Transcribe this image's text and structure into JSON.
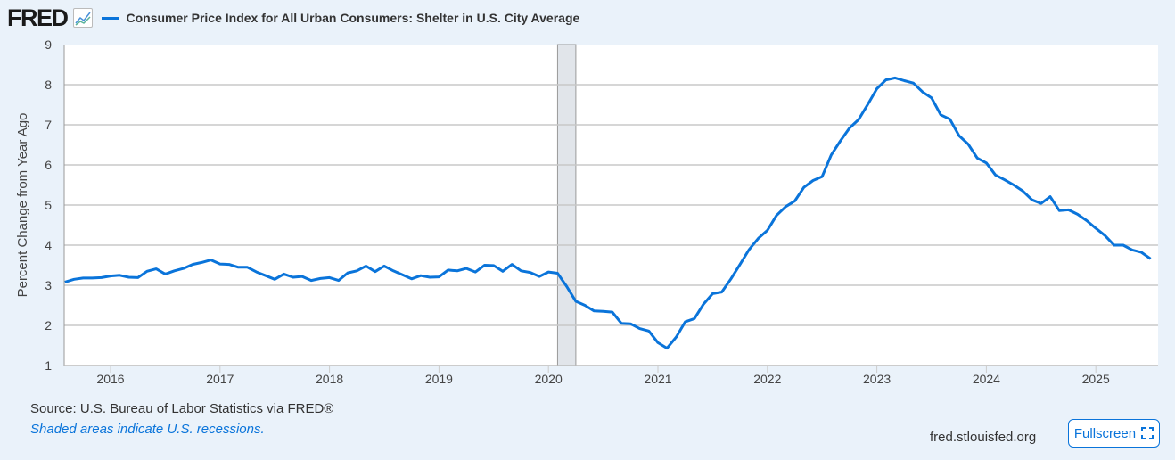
{
  "header": {
    "logo": "FRED",
    "legend_label": "Consumer Price Index for All Urban Consumers: Shelter in U.S. City Average"
  },
  "footer": {
    "source": "Source: U.S. Bureau of Labor Statistics via FRED®",
    "recession_note": "Shaded areas indicate U.S. recessions.",
    "url": "fred.stlouisfed.org",
    "fullscreen_label": "Fullscreen"
  },
  "colors": {
    "series": "#0a74da",
    "recession": "#e1e5ea",
    "grid": "#c8c8c8"
  },
  "chart_data": {
    "type": "line",
    "title": "Consumer Price Index for All Urban Consumers: Shelter in U.S. City Average",
    "ylabel": "Percent Change from Year Ago",
    "xlabel": "",
    "ylim": [
      1,
      9
    ],
    "yticks": [
      "1",
      "2",
      "3",
      "4",
      "5",
      "6",
      "7",
      "8",
      "9"
    ],
    "xticks": [
      "2016",
      "2017",
      "2018",
      "2019",
      "2020",
      "2021",
      "2022",
      "2023",
      "2024",
      "2025"
    ],
    "start": "2015-08",
    "frequency": "monthly",
    "recession": {
      "start": "2020-02",
      "end": "2020-04"
    },
    "grid": true,
    "series": [
      {
        "name": "Shelter CPI % change from year ago",
        "values": [
          3.08,
          3.15,
          3.18,
          3.18,
          3.19,
          3.23,
          3.25,
          3.2,
          3.19,
          3.35,
          3.41,
          3.28,
          3.36,
          3.42,
          3.52,
          3.57,
          3.63,
          3.53,
          3.52,
          3.45,
          3.45,
          3.33,
          3.24,
          3.15,
          3.28,
          3.2,
          3.22,
          3.12,
          3.17,
          3.19,
          3.12,
          3.31,
          3.36,
          3.48,
          3.34,
          3.48,
          3.36,
          3.26,
          3.16,
          3.24,
          3.2,
          3.21,
          3.38,
          3.36,
          3.42,
          3.33,
          3.5,
          3.49,
          3.35,
          3.52,
          3.36,
          3.32,
          3.22,
          3.33,
          3.3,
          2.97,
          2.6,
          2.5,
          2.36,
          2.35,
          2.33,
          2.05,
          2.04,
          1.92,
          1.86,
          1.57,
          1.43,
          1.71,
          2.09,
          2.17,
          2.53,
          2.79,
          2.83,
          3.16,
          3.52,
          3.89,
          4.17,
          4.37,
          4.74,
          4.96,
          5.1,
          5.44,
          5.61,
          5.71,
          6.25,
          6.6,
          6.92,
          7.13,
          7.51,
          7.9,
          8.12,
          8.17,
          8.1,
          8.04,
          7.82,
          7.67,
          7.25,
          7.14,
          6.73,
          6.52,
          6.17,
          6.05,
          5.75,
          5.63,
          5.5,
          5.35,
          5.13,
          5.04,
          5.21,
          4.86,
          4.88,
          4.77,
          4.61,
          4.42,
          4.24,
          4.0,
          4.0,
          3.88,
          3.82,
          3.66
        ]
      }
    ]
  }
}
